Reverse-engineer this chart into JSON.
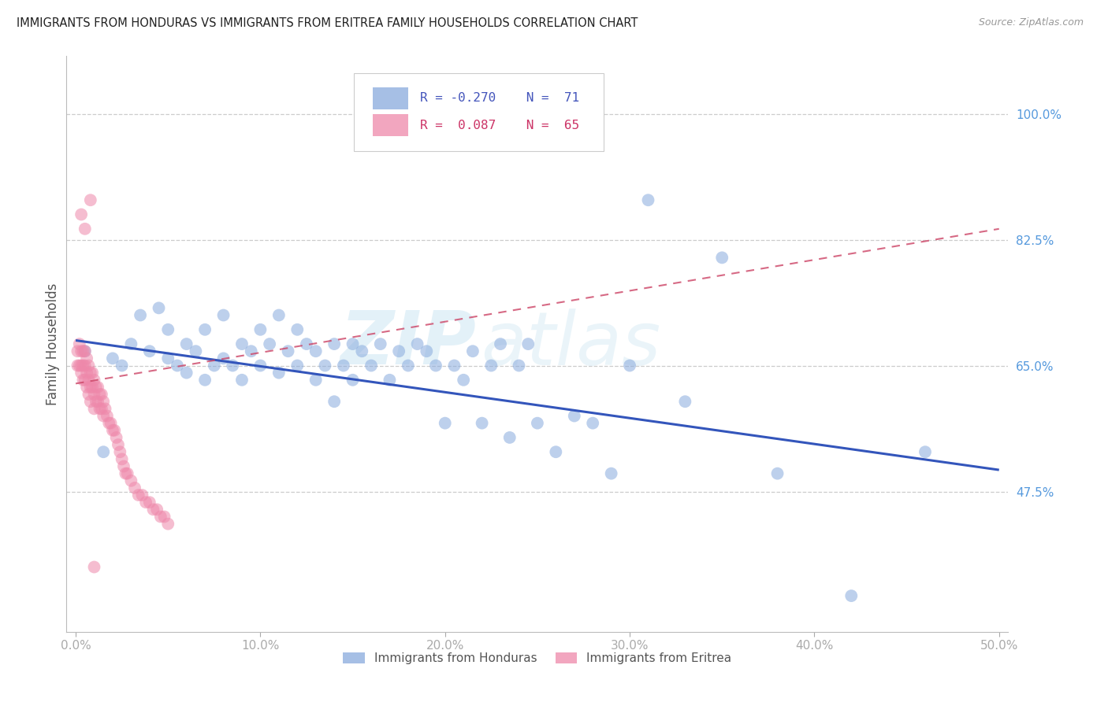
{
  "title": "IMMIGRANTS FROM HONDURAS VS IMMIGRANTS FROM ERITREA FAMILY HOUSEHOLDS CORRELATION CHART",
  "source": "Source: ZipAtlas.com",
  "xlabel_ticks": [
    "0.0%",
    "10.0%",
    "20.0%",
    "30.0%",
    "40.0%",
    "50.0%"
  ],
  "xlabel_vals": [
    0.0,
    0.1,
    0.2,
    0.3,
    0.4,
    0.5
  ],
  "ylabel": "Family Households",
  "ylabel_ticks": [
    "100.0%",
    "82.5%",
    "65.0%",
    "47.5%"
  ],
  "ylabel_vals": [
    1.0,
    0.825,
    0.65,
    0.475
  ],
  "xlim": [
    -0.005,
    0.505
  ],
  "ylim": [
    0.28,
    1.08
  ],
  "blue_color": "#88AADD",
  "pink_color": "#EE88AA",
  "blue_line_color": "#3355BB",
  "pink_line_color": "#CC4466",
  "grid_color": "#CCCCCC",
  "axis_label_color": "#5599DD",
  "watermark_zip": "ZIP",
  "watermark_atlas": "atlas",
  "blue_scatter_x": [
    0.005,
    0.015,
    0.02,
    0.025,
    0.03,
    0.035,
    0.04,
    0.045,
    0.05,
    0.05,
    0.055,
    0.06,
    0.06,
    0.065,
    0.07,
    0.07,
    0.075,
    0.08,
    0.08,
    0.085,
    0.09,
    0.09,
    0.095,
    0.1,
    0.1,
    0.105,
    0.11,
    0.11,
    0.115,
    0.12,
    0.12,
    0.125,
    0.13,
    0.13,
    0.135,
    0.14,
    0.14,
    0.145,
    0.15,
    0.15,
    0.155,
    0.16,
    0.165,
    0.17,
    0.175,
    0.18,
    0.185,
    0.19,
    0.195,
    0.2,
    0.205,
    0.21,
    0.215,
    0.22,
    0.225,
    0.23,
    0.235,
    0.24,
    0.245,
    0.25,
    0.26,
    0.27,
    0.28,
    0.29,
    0.3,
    0.31,
    0.33,
    0.35,
    0.38,
    0.42,
    0.46
  ],
  "blue_scatter_y": [
    0.67,
    0.53,
    0.66,
    0.65,
    0.68,
    0.72,
    0.67,
    0.73,
    0.66,
    0.7,
    0.65,
    0.64,
    0.68,
    0.67,
    0.63,
    0.7,
    0.65,
    0.66,
    0.72,
    0.65,
    0.68,
    0.63,
    0.67,
    0.65,
    0.7,
    0.68,
    0.64,
    0.72,
    0.67,
    0.65,
    0.7,
    0.68,
    0.63,
    0.67,
    0.65,
    0.6,
    0.68,
    0.65,
    0.63,
    0.68,
    0.67,
    0.65,
    0.68,
    0.63,
    0.67,
    0.65,
    0.68,
    0.67,
    0.65,
    0.57,
    0.65,
    0.63,
    0.67,
    0.57,
    0.65,
    0.68,
    0.55,
    0.65,
    0.68,
    0.57,
    0.53,
    0.58,
    0.57,
    0.5,
    0.65,
    0.88,
    0.6,
    0.8,
    0.5,
    0.33,
    0.53
  ],
  "pink_scatter_x": [
    0.001,
    0.001,
    0.002,
    0.002,
    0.003,
    0.003,
    0.003,
    0.004,
    0.004,
    0.004,
    0.005,
    0.005,
    0.005,
    0.006,
    0.006,
    0.006,
    0.007,
    0.007,
    0.007,
    0.008,
    0.008,
    0.008,
    0.009,
    0.009,
    0.01,
    0.01,
    0.01,
    0.011,
    0.011,
    0.012,
    0.012,
    0.013,
    0.013,
    0.014,
    0.014,
    0.015,
    0.015,
    0.016,
    0.017,
    0.018,
    0.019,
    0.02,
    0.021,
    0.022,
    0.023,
    0.024,
    0.025,
    0.026,
    0.027,
    0.028,
    0.03,
    0.032,
    0.034,
    0.036,
    0.038,
    0.04,
    0.042,
    0.044,
    0.046,
    0.048,
    0.05,
    0.01,
    0.008,
    0.005,
    0.003
  ],
  "pink_scatter_y": [
    0.67,
    0.65,
    0.68,
    0.65,
    0.67,
    0.65,
    0.64,
    0.67,
    0.65,
    0.63,
    0.67,
    0.65,
    0.63,
    0.66,
    0.64,
    0.62,
    0.65,
    0.63,
    0.61,
    0.64,
    0.62,
    0.6,
    0.64,
    0.62,
    0.63,
    0.61,
    0.59,
    0.62,
    0.6,
    0.62,
    0.6,
    0.61,
    0.59,
    0.61,
    0.59,
    0.6,
    0.58,
    0.59,
    0.58,
    0.57,
    0.57,
    0.56,
    0.56,
    0.55,
    0.54,
    0.53,
    0.52,
    0.51,
    0.5,
    0.5,
    0.49,
    0.48,
    0.47,
    0.47,
    0.46,
    0.46,
    0.45,
    0.45,
    0.44,
    0.44,
    0.43,
    0.37,
    0.88,
    0.84,
    0.86
  ],
  "blue_trendline_x": [
    0.0,
    0.5
  ],
  "blue_trendline_y": [
    0.685,
    0.505
  ],
  "pink_trendline_x": [
    0.0,
    0.5
  ],
  "pink_trendline_y": [
    0.625,
    0.84
  ]
}
